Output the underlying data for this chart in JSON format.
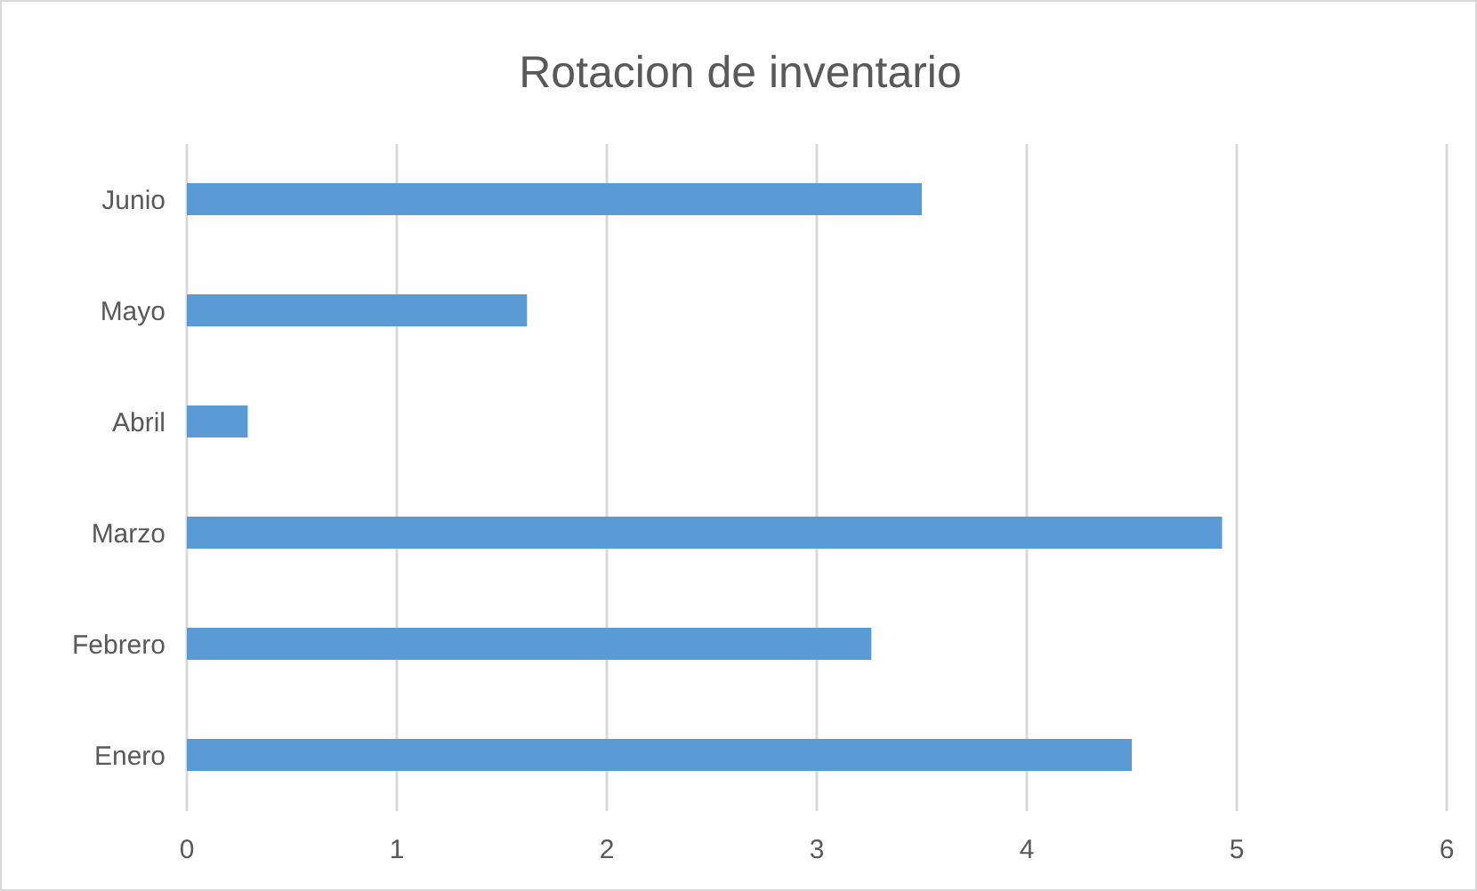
{
  "chart_data": {
    "type": "bar",
    "orientation": "horizontal",
    "title": "Rotacion de inventario",
    "categories": [
      "Junio",
      "Mayo",
      "Abril",
      "Marzo",
      "Febrero",
      "Enero"
    ],
    "values": [
      3.5,
      1.62,
      0.29,
      4.93,
      3.26,
      4.5
    ],
    "color": "#5b9bd5",
    "xlim": [
      0,
      6
    ],
    "xticks": [
      0,
      1,
      2,
      3,
      4,
      5,
      6
    ],
    "grid": "x"
  }
}
